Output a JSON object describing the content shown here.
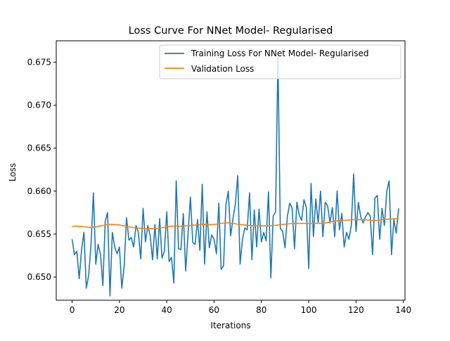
{
  "chart_data": {
    "type": "line",
    "title": "Loss Curve For NNet Model- Regularised",
    "xlabel": "Iterations",
    "ylabel": "Loss",
    "xlim": [
      -6.7,
      140.7
    ],
    "ylim": [
      0.6473,
      0.6775
    ],
    "xticks": [
      0,
      20,
      40,
      60,
      80,
      100,
      120,
      140
    ],
    "yticks": [
      0.65,
      0.655,
      0.66,
      0.665,
      0.67,
      0.675
    ],
    "xtick_labels": [
      "0",
      "20",
      "40",
      "60",
      "80",
      "100",
      "120",
      "140"
    ],
    "ytick_labels": [
      "0.650",
      "0.655",
      "0.660",
      "0.665",
      "0.670",
      "0.675"
    ],
    "grid": false,
    "legend_position": "top-right",
    "series": [
      {
        "name": "Training Loss For NNet Model- Regularised",
        "color": "#1f77b4",
        "x_start": 0,
        "x_step": 1,
        "values": [
          0.6544,
          0.6526,
          0.653,
          0.6498,
          0.6532,
          0.6552,
          0.6487,
          0.6502,
          0.6538,
          0.6598,
          0.6515,
          0.6538,
          0.6526,
          0.649,
          0.6565,
          0.6575,
          0.6478,
          0.6552,
          0.6535,
          0.6527,
          0.6535,
          0.6487,
          0.6513,
          0.6569,
          0.6543,
          0.6546,
          0.6535,
          0.656,
          0.6552,
          0.6521,
          0.658,
          0.6541,
          0.656,
          0.6548,
          0.652,
          0.6561,
          0.6521,
          0.6568,
          0.6522,
          0.653,
          0.6576,
          0.6518,
          0.6523,
          0.6493,
          0.6612,
          0.6533,
          0.6532,
          0.6574,
          0.6507,
          0.655,
          0.6593,
          0.654,
          0.6538,
          0.6567,
          0.6531,
          0.6608,
          0.6515,
          0.6576,
          0.6534,
          0.6549,
          0.6544,
          0.6527,
          0.6586,
          0.6509,
          0.6513,
          0.6584,
          0.66,
          0.6548,
          0.6568,
          0.6585,
          0.6618,
          0.6515,
          0.6544,
          0.6557,
          0.6555,
          0.6598,
          0.652,
          0.6578,
          0.6535,
          0.6579,
          0.6541,
          0.6552,
          0.6542,
          0.6599,
          0.6499,
          0.6571,
          0.6576,
          0.6757,
          0.6557,
          0.6553,
          0.6534,
          0.6571,
          0.6586,
          0.658,
          0.6533,
          0.6587,
          0.6572,
          0.6566,
          0.659,
          0.6581,
          0.651,
          0.6609,
          0.6547,
          0.6591,
          0.6563,
          0.66,
          0.6547,
          0.6587,
          0.6583,
          0.6563,
          0.6581,
          0.6547,
          0.66,
          0.6555,
          0.6574,
          0.6535,
          0.6552,
          0.6544,
          0.656,
          0.662,
          0.6553,
          0.6587,
          0.657,
          0.6563,
          0.657,
          0.6575,
          0.6571,
          0.6526,
          0.6592,
          0.6595,
          0.6544,
          0.658,
          0.656,
          0.66,
          0.6612,
          0.6526,
          0.6567,
          0.6551,
          0.658
        ]
      },
      {
        "name": "Validation Loss",
        "color": "#ff7f0e",
        "x_start": 0,
        "x_step": 1,
        "values": [
          0.65588,
          0.65592,
          0.65592,
          0.6559,
          0.65588,
          0.65585,
          0.65582,
          0.65578,
          0.65578,
          0.6558,
          0.65585,
          0.6559,
          0.65595,
          0.656,
          0.65605,
          0.6561,
          0.65612,
          0.65612,
          0.6561,
          0.65608,
          0.65605,
          0.656,
          0.65595,
          0.6559,
          0.65585,
          0.6558,
          0.65575,
          0.65572,
          0.6557,
          0.65568,
          0.65565,
          0.65563,
          0.65562,
          0.65562,
          0.65563,
          0.65565,
          0.65568,
          0.65572,
          0.65575,
          0.6558,
          0.65585,
          0.6559,
          0.65592,
          0.65593,
          0.65593,
          0.65592,
          0.65592,
          0.65593,
          0.65595,
          0.65598,
          0.656,
          0.65603,
          0.65605,
          0.65607,
          0.6561,
          0.65612,
          0.65613,
          0.65612,
          0.6561,
          0.6561,
          0.65612,
          0.65615,
          0.6562,
          0.65625,
          0.65628,
          0.6563,
          0.6563,
          0.65628,
          0.65625,
          0.6562,
          0.65615,
          0.65612,
          0.65608,
          0.65605,
          0.65602,
          0.656,
          0.65598,
          0.65597,
          0.65596,
          0.65595,
          0.65595,
          0.65595,
          0.65596,
          0.65597,
          0.65598,
          0.656,
          0.65602,
          0.65605,
          0.65608,
          0.65612,
          0.65615,
          0.65618,
          0.6562,
          0.65622,
          0.65623,
          0.65624,
          0.65625,
          0.65625,
          0.65625,
          0.65625,
          0.65625,
          0.65625,
          0.65625,
          0.65625,
          0.65625,
          0.65626,
          0.65628,
          0.6563,
          0.65635,
          0.6564,
          0.65645,
          0.6565,
          0.65653,
          0.65655,
          0.65658,
          0.6566,
          0.65662,
          0.65664,
          0.65666,
          0.65667,
          0.65668,
          0.65668,
          0.65668,
          0.65667,
          0.65665,
          0.65663,
          0.6566,
          0.65658,
          0.65658,
          0.6566,
          0.65663,
          0.65667,
          0.6567,
          0.65673,
          0.65675,
          0.65676,
          0.65677,
          0.65678,
          0.65678
        ]
      }
    ]
  }
}
